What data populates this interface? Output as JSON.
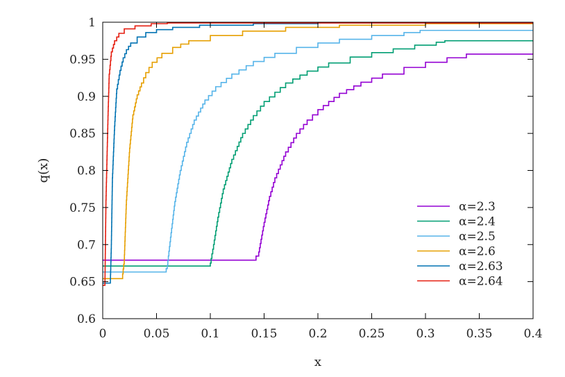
{
  "chart_data": {
    "type": "line",
    "title": "",
    "xlabel": "x",
    "ylabel": "q(x)",
    "xlim": [
      0,
      0.4
    ],
    "ylim": [
      0.6,
      1.0
    ],
    "xticks": [
      "0",
      "0.05",
      "0.1",
      "0.15",
      "0.2",
      "0.25",
      "0.3",
      "0.35",
      "0.4"
    ],
    "yticks": [
      "0.6",
      "0.65",
      "0.7",
      "0.75",
      "0.8",
      "0.85",
      "0.9",
      "0.95",
      "1"
    ],
    "grid": false,
    "legend_position": "bottom-right",
    "step": true,
    "series": [
      {
        "name": "α=2.3",
        "color": "#9400d3",
        "points": [
          [
            0,
            0.679
          ],
          [
            0.14,
            0.679
          ],
          [
            0.145,
            0.69
          ],
          [
            0.15,
            0.73
          ],
          [
            0.155,
            0.765
          ],
          [
            0.16,
            0.79
          ],
          [
            0.17,
            0.825
          ],
          [
            0.18,
            0.85
          ],
          [
            0.19,
            0.868
          ],
          [
            0.2,
            0.882
          ],
          [
            0.22,
            0.904
          ],
          [
            0.24,
            0.919
          ],
          [
            0.26,
            0.93
          ],
          [
            0.28,
            0.939
          ],
          [
            0.3,
            0.946
          ],
          [
            0.32,
            0.952
          ],
          [
            0.338,
            0.957
          ],
          [
            0.4,
            0.957
          ]
        ]
      },
      {
        "name": "α=2.4",
        "color": "#009e73",
        "points": [
          [
            0,
            0.671
          ],
          [
            0.098,
            0.671
          ],
          [
            0.1,
            0.675
          ],
          [
            0.103,
            0.7
          ],
          [
            0.107,
            0.737
          ],
          [
            0.112,
            0.775
          ],
          [
            0.12,
            0.815
          ],
          [
            0.13,
            0.85
          ],
          [
            0.14,
            0.874
          ],
          [
            0.15,
            0.893
          ],
          [
            0.17,
            0.918
          ],
          [
            0.19,
            0.934
          ],
          [
            0.21,
            0.945
          ],
          [
            0.23,
            0.953
          ],
          [
            0.25,
            0.959
          ],
          [
            0.27,
            0.964
          ],
          [
            0.29,
            0.969
          ],
          [
            0.31,
            0.973
          ],
          [
            0.318,
            0.975
          ],
          [
            0.4,
            0.975
          ]
        ]
      },
      {
        "name": "α=2.5",
        "color": "#56b4e9",
        "points": [
          [
            0,
            0.663
          ],
          [
            0.058,
            0.663
          ],
          [
            0.06,
            0.672
          ],
          [
            0.063,
            0.71
          ],
          [
            0.067,
            0.758
          ],
          [
            0.072,
            0.8
          ],
          [
            0.078,
            0.838
          ],
          [
            0.085,
            0.868
          ],
          [
            0.095,
            0.895
          ],
          [
            0.105,
            0.913
          ],
          [
            0.12,
            0.93
          ],
          [
            0.14,
            0.947
          ],
          [
            0.16,
            0.958
          ],
          [
            0.18,
            0.966
          ],
          [
            0.2,
            0.972
          ],
          [
            0.22,
            0.977
          ],
          [
            0.25,
            0.982
          ],
          [
            0.28,
            0.986
          ],
          [
            0.295,
            0.989
          ],
          [
            0.4,
            0.989
          ]
        ]
      },
      {
        "name": "α=2.6",
        "color": "#e69f00",
        "points": [
          [
            0,
            0.654
          ],
          [
            0.018,
            0.654
          ],
          [
            0.02,
            0.68
          ],
          [
            0.022,
            0.76
          ],
          [
            0.025,
            0.83
          ],
          [
            0.028,
            0.875
          ],
          [
            0.032,
            0.902
          ],
          [
            0.036,
            0.918
          ],
          [
            0.04,
            0.932
          ],
          [
            0.046,
            0.946
          ],
          [
            0.055,
            0.958
          ],
          [
            0.065,
            0.966
          ],
          [
            0.08,
            0.975
          ],
          [
            0.1,
            0.982
          ],
          [
            0.13,
            0.988
          ],
          [
            0.17,
            0.993
          ],
          [
            0.22,
            0.996
          ],
          [
            0.3,
            0.998
          ],
          [
            0.4,
            0.999
          ]
        ]
      },
      {
        "name": "α=2.63",
        "color": "#0072b2",
        "points": [
          [
            0,
            0.648
          ],
          [
            0.007,
            0.648
          ],
          [
            0.008,
            0.7
          ],
          [
            0.009,
            0.79
          ],
          [
            0.011,
            0.86
          ],
          [
            0.013,
            0.91
          ],
          [
            0.016,
            0.935
          ],
          [
            0.019,
            0.952
          ],
          [
            0.022,
            0.963
          ],
          [
            0.026,
            0.972
          ],
          [
            0.032,
            0.98
          ],
          [
            0.04,
            0.986
          ],
          [
            0.05,
            0.99
          ],
          [
            0.065,
            0.993
          ],
          [
            0.09,
            0.996
          ],
          [
            0.14,
            0.998
          ],
          [
            0.2,
            0.999
          ],
          [
            0.4,
            0.999
          ]
        ]
      },
      {
        "name": "α=2.64",
        "color": "#e51e10",
        "points": [
          [
            0,
            0.645
          ],
          [
            0.002,
            0.645
          ],
          [
            0.003,
            0.76
          ],
          [
            0.004,
            0.82
          ],
          [
            0.005,
            0.88
          ],
          [
            0.006,
            0.93
          ],
          [
            0.008,
            0.96
          ],
          [
            0.011,
            0.975
          ],
          [
            0.015,
            0.985
          ],
          [
            0.02,
            0.991
          ],
          [
            0.03,
            0.995
          ],
          [
            0.045,
            0.998
          ],
          [
            0.06,
            0.999
          ],
          [
            0.4,
            1.0
          ]
        ]
      }
    ]
  }
}
